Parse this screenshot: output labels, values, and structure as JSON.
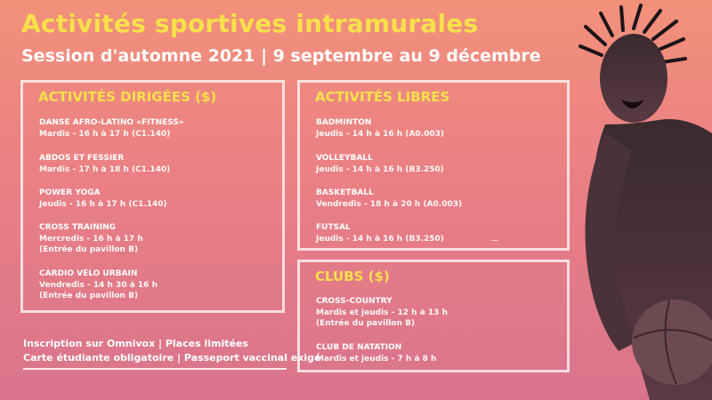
{
  "header": {
    "title": "Activités sportives intramurales",
    "subtitle": "Session d'automne 2021 | 9 septembre au 9 décembre"
  },
  "dirigees": {
    "title": "ACTIVITÉS DIRIGÉES ($)",
    "items": [
      {
        "name": "DANSE AFRO-LATINO «FITNESS»",
        "lines": [
          "Mardis - 16 h à 17 h (C1.140)"
        ]
      },
      {
        "name": "ABDOS ET FESSIER",
        "lines": [
          "Mardis - 17 h à 18 h (C1.140)"
        ]
      },
      {
        "name": "POWER YOGA",
        "lines": [
          "Jeudis - 16 h à 17 h (C1.140)"
        ]
      },
      {
        "name": "CROSS TRAINING",
        "lines": [
          "Mercredis - 16 h à 17 h",
          "(Entrée du pavillon B)"
        ]
      },
      {
        "name": "CARDIO VÉLO URBAIN",
        "lines": [
          "Vendredis - 14 h 30 à 16 h",
          "(Entrée du pavillon B)"
        ]
      }
    ]
  },
  "libres": {
    "title": "ACTIVITÉS LIBRES",
    "items": [
      {
        "name": "BADMINTON",
        "lines": [
          "Jeudis - 14 h à 16 h (A0.003)"
        ]
      },
      {
        "name": "VOLLEYBALL",
        "lines": [
          "Jeudis - 14 h à 16 h (B3.250)"
        ]
      },
      {
        "name": "BASKETBALL",
        "lines": [
          "Vendredis - 18 h à 20 h (A0.003)"
        ]
      },
      {
        "name": "FUTSAL",
        "lines": [
          "Jeudis - 14 h à 16 h (B3.250)"
        ]
      }
    ]
  },
  "clubs": {
    "title": "CLUBS ($)",
    "items": [
      {
        "name": "CROSS-COUNTRY",
        "lines": [
          "Mardis et jeudis - 12 h à 13 h",
          "(Entrée du pavillon B)"
        ]
      },
      {
        "name": "CLUB DE NATATION",
        "lines": [
          "Mardis et jeudis - 7 h à 8 h"
        ]
      }
    ]
  },
  "footer": {
    "line1": "Inscription sur Omnivox | Places limitées",
    "line2": "Carte étudiante obligatoire | Passeport vaccinal exigé"
  },
  "colors": {
    "accent": "#f7e04a",
    "bg_top": "#f2917a",
    "bg_bottom": "#d9748c"
  },
  "image": {
    "subject": "basketball-player-photo"
  }
}
